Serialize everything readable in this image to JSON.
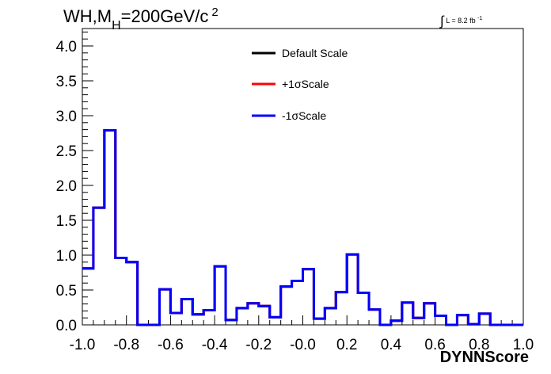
{
  "chart_data": {
    "type": "histogram",
    "title": {
      "main": "WH,M",
      "sub": "H",
      "rest": "=200GeV/c",
      "sup": "2"
    },
    "lumi": {
      "int": "∫",
      "text": "L = 8.2 fb",
      "sup": "-1"
    },
    "xlabel": "DYNNScore",
    "ylabel": "",
    "xlim": [
      -1.0,
      1.0
    ],
    "ylim": [
      0.0,
      4.25
    ],
    "grid": false,
    "x_ticks": [
      "-1.0",
      "-0.8",
      "-0.6",
      "-0.4",
      "-0.2",
      "-0.0",
      "0.2",
      "0.4",
      "0.6",
      "0.8",
      "1.0"
    ],
    "y_ticks": [
      "0.0",
      "0.5",
      "1.0",
      "1.5",
      "2.0",
      "2.5",
      "3.0",
      "3.5",
      "4.0"
    ],
    "bin_edges": [
      -1.0,
      -0.95,
      -0.9,
      -0.85,
      -0.8,
      -0.75,
      -0.7,
      -0.65,
      -0.6,
      -0.55,
      -0.5,
      -0.45,
      -0.4,
      -0.35,
      -0.3,
      -0.25,
      -0.2,
      -0.15,
      -0.1,
      -0.05,
      0.0,
      0.05,
      0.1,
      0.15,
      0.2,
      0.25,
      0.3,
      0.35,
      0.4,
      0.45,
      0.5,
      0.55,
      0.6,
      0.65,
      0.7,
      0.75,
      0.8,
      0.85,
      0.9,
      0.95,
      1.0
    ],
    "series": [
      {
        "name": "Default Scale",
        "color": "#000000",
        "values": [
          0.81,
          1.68,
          2.79,
          0.96,
          0.9,
          0.0,
          0.0,
          0.51,
          0.17,
          0.37,
          0.15,
          0.21,
          0.84,
          0.07,
          0.24,
          0.31,
          0.27,
          0.11,
          0.55,
          0.63,
          0.8,
          0.09,
          0.24,
          0.47,
          1.01,
          0.46,
          0.22,
          0.0,
          0.06,
          0.32,
          0.1,
          0.31,
          0.13,
          0.0,
          0.14,
          0.01,
          0.16,
          0.0,
          0.0,
          0.0
        ]
      },
      {
        "name": "+1σScale",
        "color": "#ff0000",
        "values": [
          0.81,
          1.68,
          2.79,
          0.96,
          0.9,
          0.0,
          0.0,
          0.51,
          0.17,
          0.37,
          0.15,
          0.21,
          0.84,
          0.07,
          0.24,
          0.31,
          0.27,
          0.11,
          0.55,
          0.63,
          0.8,
          0.09,
          0.24,
          0.47,
          1.01,
          0.46,
          0.22,
          0.0,
          0.06,
          0.32,
          0.1,
          0.31,
          0.13,
          0.0,
          0.14,
          0.01,
          0.16,
          0.0,
          0.0,
          0.0
        ]
      },
      {
        "name": "-1σScale",
        "color": "#0000ff",
        "values": [
          0.81,
          1.68,
          2.79,
          0.96,
          0.9,
          0.0,
          0.0,
          0.51,
          0.17,
          0.37,
          0.15,
          0.21,
          0.84,
          0.07,
          0.24,
          0.31,
          0.27,
          0.11,
          0.55,
          0.63,
          0.8,
          0.09,
          0.24,
          0.47,
          1.01,
          0.46,
          0.22,
          0.0,
          0.06,
          0.32,
          0.1,
          0.31,
          0.13,
          0.0,
          0.14,
          0.01,
          0.16,
          0.0,
          0.0,
          0.0
        ]
      }
    ],
    "legend_position": "top-center"
  }
}
